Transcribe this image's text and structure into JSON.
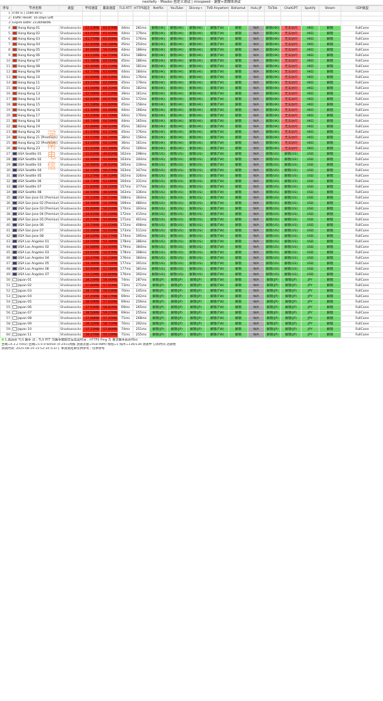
{
  "page_title": "nexitally - Miaoko 自定义测试 | mixspeed - 速度+流媒体测试",
  "watermark": "河南电信",
  "columns": [
    "序号",
    "节点名称",
    "类型",
    "平均速度",
    "最高速度",
    "TLS RTT",
    "HTTPS延迟",
    "Netflix",
    "YouTube",
    "Disney+",
    "TVB Anywhere",
    "Bahamut",
    "Hulu JP",
    "TikTok",
    "ChatGPT",
    "Spotify",
    "Steam",
    "UDP类型"
  ],
  "info_rows": [
    {
      "idx": "1",
      "node": "0.00 G | 1580.80 G"
    },
    {
      "idx": "2",
      "node": "Traffic Reset: 16 Days Left"
    },
    {
      "idx": "3",
      "node": "Expire Date: 2130/08/06"
    }
  ],
  "rows": [
    {
      "idx": "4",
      "node": "Hong Kong 01",
      "type": "Shadowsocks",
      "avg": "42.13MB",
      "max": "64.87MB",
      "tls": "44ms",
      "https": "281ms",
      "region": "HK",
      "spotify": "HKD"
    },
    {
      "idx": "5",
      "node": "Hong Kong 02",
      "type": "Shadowsocks",
      "avg": "43.05MB",
      "max": "61.92MB",
      "tls": "44ms",
      "https": "179ms",
      "region": "HK",
      "spotify": "HKD"
    },
    {
      "idx": "6",
      "node": "Hong Kong 03",
      "type": "Shadowsocks",
      "avg": "41.77MB",
      "max": "63.40MB",
      "tls": "45ms",
      "https": "176ms",
      "region": "HK",
      "spotify": "HKD"
    },
    {
      "idx": "7",
      "node": "Hong Kong 04",
      "type": "Shadowsocks",
      "avg": "42.92MB",
      "max": "60.18MB",
      "tls": "45ms",
      "https": "254ms",
      "region": "HK",
      "spotify": "HKD"
    },
    {
      "idx": "8",
      "node": "Hong Kong 05",
      "type": "Shadowsocks",
      "avg": "40.66MB",
      "max": "59.03MB",
      "tls": "44ms",
      "https": "189ms",
      "region": "HK",
      "spotify": "HKD"
    },
    {
      "idx": "9",
      "node": "Hong Kong 06",
      "type": "Shadowsocks",
      "avg": "43.11MB",
      "max": "62.75MB",
      "tls": "43ms",
      "https": "188ms",
      "region": "HK",
      "spotify": "HKD"
    },
    {
      "idx": "10",
      "node": "Hong Kong 07",
      "type": "Shadowsocks",
      "avg": "41.38MB",
      "max": "64.02MB",
      "tls": "45ms",
      "https": "186ms",
      "region": "HK",
      "spotify": "HKD"
    },
    {
      "idx": "11",
      "node": "Hong Kong 08",
      "type": "Shadowsocks",
      "avg": "42.40MB",
      "max": "61.11MB",
      "tls": "44ms",
      "https": "181ms",
      "region": "HK",
      "spotify": "HKD"
    },
    {
      "idx": "12",
      "node": "Hong Kong 09",
      "type": "Shadowsocks",
      "avg": "42.77MB",
      "max": "63.66MB",
      "tls": "44ms",
      "https": "184ms",
      "region": "HK",
      "spotify": "HKD"
    },
    {
      "idx": "13",
      "node": "Hong Kong 10",
      "type": "Shadowsocks",
      "avg": "40.89MB",
      "max": "60.43MB",
      "tls": "44ms",
      "https": "176ms",
      "region": "HK",
      "spotify": "HKD"
    },
    {
      "idx": "14",
      "node": "Hong Kong 11",
      "type": "Shadowsocks",
      "avg": "43.21MB",
      "max": "62.08MB",
      "tls": "45ms",
      "https": "179ms",
      "region": "HK",
      "spotify": "HKD"
    },
    {
      "idx": "15",
      "node": "Hong Kong 12",
      "type": "Shadowsocks",
      "avg": "41.56MB",
      "max": "64.31MB",
      "tls": "45ms",
      "https": "182ms",
      "region": "HK",
      "spotify": "HKD"
    },
    {
      "idx": "16",
      "node": "Hong Kong 13",
      "type": "Shadowsocks",
      "avg": "42.09MB",
      "max": "61.52MB",
      "tls": "39ms",
      "https": "161ms",
      "region": "HK",
      "spotify": "HKD"
    },
    {
      "idx": "17",
      "node": "Hong Kong 14",
      "type": "Shadowsocks",
      "avg": "42.62MB",
      "max": "60.97MB",
      "tls": "42ms",
      "https": "172ms",
      "region": "HK",
      "spotify": "HKD"
    },
    {
      "idx": "18",
      "node": "Hong Kong 15",
      "type": "Shadowsocks",
      "avg": "41.18MB",
      "max": "63.84MB",
      "tls": "45ms",
      "https": "158ms",
      "region": "HK",
      "spotify": "HKD"
    },
    {
      "idx": "19",
      "node": "Hong Kong 16",
      "type": "Shadowsocks",
      "avg": "43.30MB",
      "max": "62.46MB",
      "tls": "44ms",
      "https": "166ms",
      "region": "HK",
      "spotify": "HKD"
    },
    {
      "idx": "20",
      "node": "Hong Kong 17",
      "type": "Shadowsocks",
      "avg": "42.25MB",
      "max": "61.70MB",
      "tls": "44ms",
      "https": "170ms",
      "region": "HK",
      "spotify": "HKD"
    },
    {
      "idx": "21",
      "node": "Hong Kong 18",
      "type": "Shadowsocks",
      "avg": "40.74MB",
      "max": "64.59MB",
      "tls": "44ms",
      "https": "165ms",
      "region": "HK",
      "spotify": "HKD"
    },
    {
      "idx": "22",
      "node": "Hong Kong 19",
      "type": "Shadowsocks",
      "avg": "42.88MB",
      "max": "60.62MB",
      "tls": "45ms",
      "https": "182ms",
      "region": "HK",
      "spotify": "HKD"
    },
    {
      "idx": "23",
      "node": "Hong Kong 20",
      "type": "Shadowsocks",
      "avg": "41.93MB",
      "max": "63.15MB",
      "tls": "45ms",
      "https": "176ms",
      "region": "HK",
      "spotify": "HKD"
    },
    {
      "idx": "24",
      "node": "Hong Kong 21 [Premium]",
      "type": "Shadowsocks",
      "avg": "42.51MB",
      "max": "62.24MB",
      "tls": "38ms",
      "https": "156ms",
      "region": "HK",
      "spotify": "HKD"
    },
    {
      "idx": "25",
      "node": "Hong Kong 22 [Premium]",
      "type": "Shadowsocks",
      "avg": "43.44MB",
      "max": "64.12MB",
      "tls": "36ms",
      "https": "161ms",
      "region": "HK",
      "spotify": "HKD"
    },
    {
      "idx": "26",
      "node": "Hong Kong 23",
      "type": "Shadowsocks",
      "avg": "41.02MB",
      "max": "61.39MB",
      "tls": "45ms",
      "https": "169ms",
      "region": "HK",
      "spotify": "HKD"
    },
    {
      "idx": "27",
      "node": "USA Seattle 01",
      "type": "Shadowsocks",
      "avg": "31.62MB",
      "max": "49.81MB",
      "tls": "162ms",
      "https": "298ms",
      "region": "US",
      "spotify": "USD"
    },
    {
      "idx": "28",
      "node": "USA Seattle 02",
      "type": "Shadowsocks",
      "avg": "32.40MB",
      "max": "51.66MB",
      "tls": "163ms",
      "https": "344ms",
      "region": "US",
      "spotify": "USD"
    },
    {
      "idx": "29",
      "node": "USA Seattle 03",
      "type": "Shadowsocks",
      "avg": "30.98MB",
      "max": "48.92MB",
      "tls": "165ms",
      "https": "339ms",
      "region": "US",
      "spotify": "USD"
    },
    {
      "idx": "30",
      "node": "USA Seattle 04",
      "type": "Shadowsocks",
      "avg": "32.15MB",
      "max": "50.47MB",
      "tls": "163ms",
      "https": "347ms",
      "region": "US",
      "spotify": "USD"
    },
    {
      "idx": "31",
      "node": "USA Seattle 05",
      "type": "Shadowsocks",
      "avg": "31.27MB",
      "max": "49.33MB",
      "tls": "162ms",
      "https": "326ms",
      "region": "US",
      "spotify": "USD"
    },
    {
      "idx": "32",
      "node": "USA Seattle 06",
      "type": "Shadowsocks",
      "avg": "32.73MB",
      "max": "51.08MB",
      "tls": "164ms",
      "https": "331ms",
      "region": "US",
      "spotify": "USD"
    },
    {
      "idx": "33",
      "node": "USA Seattle 07",
      "type": "Shadowsocks",
      "avg": "31.84MB",
      "max": "50.20MB",
      "tls": "157ms",
      "https": "377ms",
      "region": "US",
      "spotify": "USD"
    },
    {
      "idx": "34",
      "node": "USA Seattle 08",
      "type": "Shadowsocks",
      "avg": "30.59MB",
      "max": "48.64MB",
      "tls": "163ms",
      "https": "336ms",
      "region": "US",
      "spotify": "USD"
    },
    {
      "idx": "35",
      "node": "USA San Jose 01 [Premium]",
      "type": "Shadowsocks",
      "avg": "35.12MB",
      "max": "55.71MB",
      "tls": "168ms",
      "https": "364ms",
      "region": "US",
      "spotify": "USD"
    },
    {
      "idx": "36",
      "node": "USA San Jose 02 [Premium]",
      "type": "Shadowsocks",
      "avg": "34.48MB",
      "max": "54.39MB",
      "tls": "169ms",
      "https": "480ms",
      "region": "US",
      "spotify": "USD"
    },
    {
      "idx": "37",
      "node": "USA San Jose 03 [Premium]",
      "type": "Shadowsocks",
      "avg": "35.66MB",
      "max": "56.02MB",
      "tls": "170ms",
      "https": "393ms",
      "region": "US",
      "spotify": "USD"
    },
    {
      "idx": "38",
      "node": "USA San Jose 04 [Premium]",
      "type": "Shadowsocks",
      "avg": "34.91MB",
      "max": "55.18MB",
      "tls": "172ms",
      "https": "415ms",
      "region": "US",
      "spotify": "USD"
    },
    {
      "idx": "39",
      "node": "USA San Jose 05 [Premium]",
      "type": "Shadowsocks",
      "avg": "35.27MB",
      "max": "54.86MB",
      "tls": "171ms",
      "https": "401ms",
      "region": "US",
      "spotify": "USD"
    },
    {
      "idx": "40",
      "node": "USA San Jose 06",
      "type": "Shadowsocks",
      "avg": "33.74MB",
      "max": "53.05MB",
      "tls": "172ms",
      "https": "408ms",
      "region": "US",
      "spotify": "USD"
    },
    {
      "idx": "41",
      "node": "USA San Jose 07",
      "type": "Shadowsocks",
      "avg": "33.28MB",
      "max": "52.61MB",
      "tls": "173ms",
      "https": "511ms",
      "region": "US",
      "spotify": "USD"
    },
    {
      "idx": "42",
      "node": "USA San Jose 08",
      "type": "Shadowsocks",
      "avg": "34.02MB",
      "max": "53.77MB",
      "tls": "174ms",
      "https": "395ms",
      "region": "US",
      "spotify": "USD"
    },
    {
      "idx": "43",
      "node": "USA Los Angeles 01",
      "type": "Shadowsocks",
      "avg": "33.55MB",
      "max": "52.38MB",
      "tls": "178ms",
      "https": "386ms",
      "region": "US",
      "spotify": "USD"
    },
    {
      "idx": "44",
      "node": "USA Los Angeles 02",
      "type": "Shadowsocks",
      "avg": "32.88MB",
      "max": "51.90MB",
      "tls": "179ms",
      "https": "384ms",
      "region": "US",
      "spotify": "USD"
    },
    {
      "idx": "45",
      "node": "USA Los Angeles 03",
      "type": "Shadowsocks",
      "avg": "33.91MB",
      "max": "52.97MB",
      "tls": "178ms",
      "https": "398ms",
      "region": "US",
      "spotify": "USD"
    },
    {
      "idx": "46",
      "node": "USA Los Angeles 04",
      "type": "Shadowsocks",
      "avg": "32.47MB",
      "max": "51.23MB",
      "tls": "176ms",
      "https": "384ms",
      "region": "US",
      "spotify": "USD"
    },
    {
      "idx": "47",
      "node": "USA Los Angeles 05",
      "type": "Shadowsocks",
      "avg": "33.36MB",
      "max": "52.14MB",
      "tls": "177ms",
      "https": "391ms",
      "region": "US",
      "spotify": "USD"
    },
    {
      "idx": "48",
      "node": "USA Los Angeles 06",
      "type": "Shadowsocks",
      "avg": "32.95MB",
      "max": "51.58MB",
      "tls": "177ms",
      "https": "381ms",
      "region": "US",
      "spotify": "USD"
    },
    {
      "idx": "49",
      "node": "USA Los Angeles 07",
      "type": "Shadowsocks",
      "avg": "33.12MB",
      "max": "52.80MB",
      "tls": "176ms",
      "https": "392ms",
      "region": "US",
      "spotify": "USD"
    },
    {
      "idx": "50",
      "node": "Japan 01",
      "type": "Shadowsocks",
      "avg": "38.24MB",
      "max": "58.46MB",
      "tls": "74ms",
      "https": "287ms",
      "region": "JP",
      "spotify": "JPY"
    },
    {
      "idx": "51",
      "node": "Japan 02",
      "type": "Shadowsocks",
      "avg": "37.86MB",
      "max": "57.92MB",
      "tls": "73ms",
      "https": "271ms",
      "region": "JP",
      "spotify": "JPY"
    },
    {
      "idx": "52",
      "node": "Japan 03",
      "type": "Shadowsocks",
      "avg": "38.71MB",
      "max": "59.03MB",
      "tls": "70ms",
      "https": "245ms",
      "region": "JP",
      "spotify": "JPY"
    },
    {
      "idx": "53",
      "node": "Japan 04",
      "type": "Shadowsocks",
      "avg": "37.45MB",
      "max": "58.17MB",
      "tls": "69ms",
      "https": "242ms",
      "region": "JP",
      "spotify": "JPY"
    },
    {
      "idx": "54",
      "node": "Japan 05",
      "type": "Shadowsocks",
      "avg": "38.09MB",
      "max": "57.64MB",
      "tls": "69ms",
      "https": "259ms",
      "region": "JP",
      "spotify": "JPY"
    },
    {
      "idx": "55",
      "node": "Japan 06",
      "type": "Shadowsocks",
      "avg": "37.93MB",
      "max": "58.82MB",
      "tls": "69ms",
      "https": "265ms",
      "region": "JP",
      "spotify": "JPY"
    },
    {
      "idx": "56",
      "node": "Japan 07",
      "type": "Shadowsocks",
      "avg": "38.56MB",
      "max": "59.27MB",
      "tls": "69ms",
      "https": "255ms",
      "region": "JP",
      "spotify": "JPY"
    },
    {
      "idx": "57",
      "node": "Japan 08",
      "type": "Shadowsocks",
      "avg": "37.68MB",
      "max": "57.35MB",
      "tls": "71ms",
      "https": "268ms",
      "region": "JP",
      "spotify": "JPY"
    },
    {
      "idx": "58",
      "node": "Japan 09",
      "type": "Shadowsocks",
      "avg": "38.32MB",
      "max": "58.71MB",
      "tls": "70ms",
      "https": "292ms",
      "region": "JP",
      "spotify": "JPY"
    },
    {
      "idx": "59",
      "node": "Japan 10",
      "type": "Shadowsocks",
      "avg": "37.21MB",
      "max": "57.86MB",
      "tls": "74ms",
      "https": "251ms",
      "region": "JP",
      "spotify": "JPY"
    },
    {
      "idx": "60",
      "node": "Japan 11",
      "type": "Shadowsocks",
      "avg": "38.47MB",
      "max": "59.14MB",
      "tls": "71ms",
      "https": "255ms",
      "region": "JP",
      "spotify": "JPY"
    }
  ],
  "footer": {
    "legend_line": "1.高延迟 TLS 握手 过 ; TLS RTT 为握手数据交互往返时间 ; HTTPS Ping 为 首次握手延迟时间",
    "line2": "主端=4.3.2 (692) 后端=5.0.0-beta4 (4-2411周报 测速流量=918.98M) 线程=1 排序=136/138 测速中 订阅时间 过期者",
    "line3": "测试时间: 2025-08-19 15:52:34 (CST), 本测试结果仅供参考 ; 仅供参考"
  }
}
